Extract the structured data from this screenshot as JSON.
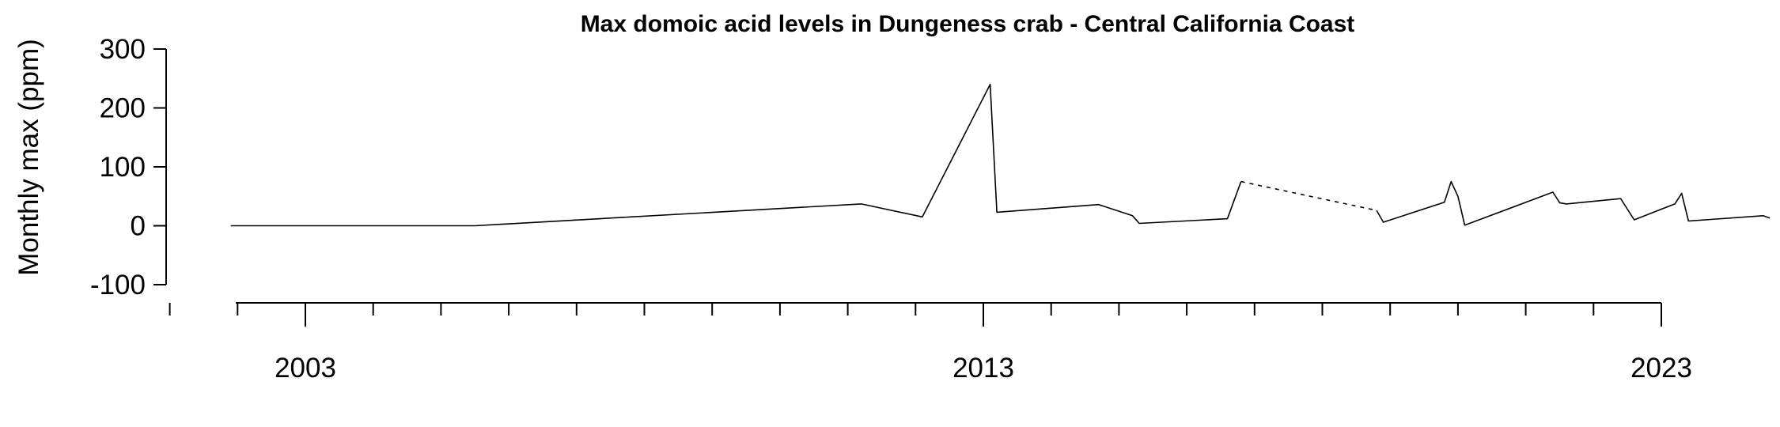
{
  "chart_data": {
    "type": "line",
    "title": "Max domoic acid levels in Dungeness crab - Central California Coast",
    "xlabel": "",
    "ylabel": "Monthly max (ppm)",
    "ylim": [
      -100,
      300
    ],
    "yticks": [
      300,
      200,
      100,
      0,
      -100
    ],
    "xlim": [
      2000.8,
      2023.6
    ],
    "xticks_major": [
      2003,
      2013,
      2023
    ],
    "xticks_major_labels": [
      "2003",
      "2013",
      "2023"
    ],
    "xticks_minor": [
      2001,
      2002,
      2003,
      2004,
      2005,
      2006,
      2007,
      2008,
      2009,
      2010,
      2011,
      2012,
      2013,
      2014,
      2015,
      2016,
      2017,
      2018,
      2019,
      2020,
      2021,
      2022,
      2023
    ],
    "grid": false,
    "series": [
      {
        "segments": [
          {
            "style": "solid",
            "points": [
              [
                2001.9,
                0
              ],
              [
                2005.5,
                0
              ],
              [
                2011.2,
                37
              ],
              [
                2012.1,
                15
              ],
              [
                2013.1,
                240
              ],
              [
                2013.2,
                23
              ],
              [
                2014.7,
                36
              ],
              [
                2015.2,
                17
              ],
              [
                2015.3,
                4
              ],
              [
                2016.6,
                12
              ],
              [
                2016.8,
                75
              ]
            ]
          },
          {
            "style": "dashed",
            "points": [
              [
                2016.8,
                75
              ],
              [
                2018.8,
                26
              ]
            ]
          },
          {
            "style": "solid",
            "points": [
              [
                2018.8,
                26
              ],
              [
                2018.9,
                6
              ],
              [
                2019.8,
                40
              ],
              [
                2019.9,
                75
              ],
              [
                2020.0,
                50
              ],
              [
                2020.1,
                1
              ],
              [
                2021.4,
                57
              ],
              [
                2021.5,
                39
              ],
              [
                2021.6,
                37
              ],
              [
                2022.4,
                46
              ],
              [
                2022.6,
                10
              ],
              [
                2023.2,
                37
              ],
              [
                2023.3,
                55
              ],
              [
                2023.4,
                8
              ],
              [
                2024.5,
                17
              ],
              [
                2024.6,
                13
              ]
            ]
          }
        ]
      }
    ]
  }
}
